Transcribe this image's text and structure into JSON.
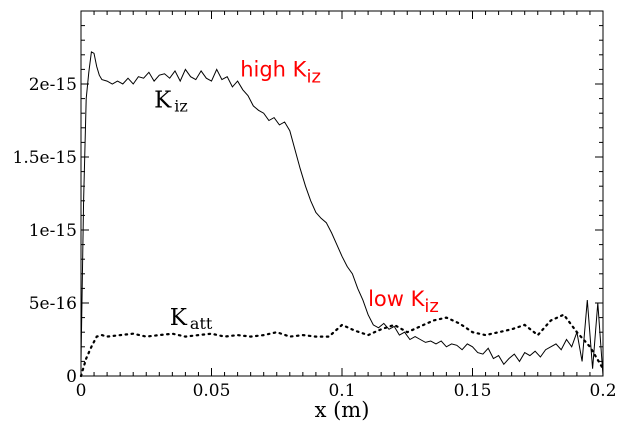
{
  "chart_data": {
    "type": "line",
    "title": "",
    "xlabel": "x (m)",
    "ylabel": "",
    "xlim": [
      0,
      0.2
    ],
    "ylim": [
      0,
      2.5e-15
    ],
    "x_ticks": [
      0,
      0.05,
      0.1,
      0.15,
      0.2
    ],
    "x_tick_labels": [
      "0",
      "0.05",
      "0.1",
      "0.15",
      "0.2"
    ],
    "y_ticks": [
      0,
      5e-16,
      1e-15,
      1.5e-15,
      2e-15
    ],
    "y_tick_labels": [
      "0",
      "5e-16",
      "1e-15",
      "1.5e-15",
      "2e-15"
    ],
    "grid": false,
    "series": [
      {
        "name": "K iz",
        "label_main": "K",
        "label_sub": "iz",
        "style": "solid",
        "color": "#000000",
        "x": [
          0.0,
          0.001,
          0.002,
          0.003,
          0.004,
          0.005,
          0.006,
          0.007,
          0.008,
          0.01,
          0.012,
          0.014,
          0.016,
          0.018,
          0.02,
          0.022,
          0.024,
          0.026,
          0.028,
          0.03,
          0.032,
          0.034,
          0.036,
          0.038,
          0.04,
          0.042,
          0.044,
          0.046,
          0.048,
          0.05,
          0.052,
          0.054,
          0.056,
          0.058,
          0.06,
          0.062,
          0.064,
          0.066,
          0.068,
          0.07,
          0.072,
          0.074,
          0.076,
          0.078,
          0.08,
          0.082,
          0.084,
          0.086,
          0.088,
          0.09,
          0.092,
          0.094,
          0.096,
          0.098,
          0.1,
          0.102,
          0.104,
          0.106,
          0.108,
          0.11,
          0.112,
          0.114,
          0.116,
          0.118,
          0.12,
          0.122,
          0.124,
          0.126,
          0.128,
          0.13,
          0.132,
          0.134,
          0.136,
          0.138,
          0.14,
          0.142,
          0.144,
          0.146,
          0.148,
          0.15,
          0.152,
          0.154,
          0.156,
          0.158,
          0.16,
          0.162,
          0.164,
          0.166,
          0.168,
          0.17,
          0.172,
          0.174,
          0.176,
          0.178,
          0.18,
          0.182,
          0.184,
          0.186,
          0.188,
          0.19,
          0.192,
          0.194,
          0.196,
          0.198,
          0.2
        ],
        "y": [
          1e-16,
          1.2e-15,
          1.9e-15,
          2.08e-15,
          2.22e-15,
          2.21e-15,
          2.12e-15,
          2.06e-15,
          2.03e-15,
          2.02e-15,
          2e-15,
          2.02e-15,
          2e-15,
          2.04e-15,
          2e-15,
          2.05e-15,
          2.04e-15,
          2.08e-15,
          2.02e-15,
          2.06e-15,
          2.07e-15,
          2.04e-15,
          2.09e-15,
          2.02e-15,
          2.1e-15,
          2.05e-15,
          2.03e-15,
          2.09e-15,
          2.04e-15,
          2.02e-15,
          2.1e-15,
          2.03e-15,
          2.05e-15,
          1.98e-15,
          2.02e-15,
          1.96e-15,
          1.92e-15,
          1.85e-15,
          1.82e-15,
          1.8e-15,
          1.75e-15,
          1.77e-15,
          1.72e-15,
          1.74e-15,
          1.68e-15,
          1.55e-15,
          1.42e-15,
          1.3e-15,
          1.2e-15,
          1.12e-15,
          1.08e-15,
          1.05e-15,
          9.8e-16,
          9e-16,
          8.2e-16,
          7.5e-16,
          7e-16,
          6e-16,
          5.2e-16,
          4.2e-16,
          3.5e-16,
          3.3e-16,
          3.6e-16,
          3.2e-16,
          3.4e-16,
          2.8e-16,
          3e-16,
          2.5e-16,
          2.7e-16,
          2.5e-16,
          2.3e-16,
          2.4e-16,
          2.2e-16,
          2.4e-16,
          2e-16,
          2.2e-16,
          2.1e-16,
          1.8e-16,
          2.2e-16,
          2e-16,
          1.6e-16,
          1.5e-16,
          1.9e-16,
          1.2e-16,
          1.4e-16,
          8e-17,
          1.2e-16,
          1.5e-16,
          1e-16,
          1.6e-16,
          1.4e-16,
          1.7e-16,
          1.3e-16,
          1.8e-16,
          2e-16,
          2.2e-16,
          1.8e-16,
          2.5e-16,
          2e-16,
          3e-16,
          1e-16,
          5.2e-16,
          5e-17,
          5e-16,
          0.0
        ]
      },
      {
        "name": "K att",
        "label_main": "K",
        "label_sub": "att",
        "style": "dotted",
        "color": "#000000",
        "x": [
          0.0,
          0.002,
          0.004,
          0.006,
          0.008,
          0.01,
          0.015,
          0.02,
          0.025,
          0.03,
          0.035,
          0.04,
          0.045,
          0.05,
          0.055,
          0.06,
          0.065,
          0.07,
          0.075,
          0.08,
          0.085,
          0.09,
          0.095,
          0.1,
          0.105,
          0.11,
          0.115,
          0.12,
          0.125,
          0.13,
          0.135,
          0.14,
          0.145,
          0.15,
          0.155,
          0.16,
          0.165,
          0.17,
          0.175,
          0.18,
          0.185,
          0.19,
          0.195,
          0.2
        ],
        "y": [
          0.0,
          1.2e-16,
          2e-16,
          2.7e-16,
          2.8e-16,
          2.7e-16,
          2.8e-16,
          2.9e-16,
          2.7e-16,
          2.8e-16,
          2.9e-16,
          2.7e-16,
          2.8e-16,
          2.9e-16,
          2.7e-16,
          2.8e-16,
          2.7e-16,
          2.8e-16,
          3e-16,
          2.7e-16,
          2.8e-16,
          2.7e-16,
          2.7e-16,
          3.5e-16,
          3.1e-16,
          2.8e-16,
          3.2e-16,
          3.5e-16,
          3e-16,
          3.4e-16,
          3.8e-16,
          4e-16,
          3.6e-16,
          3e-16,
          2.8e-16,
          3e-16,
          3.2e-16,
          3.5e-16,
          2.8e-16,
          3.8e-16,
          4.2e-16,
          3e-16,
          2e-16,
          5e-17
        ]
      }
    ],
    "annotations": [
      {
        "id": "high",
        "main": "high K",
        "sub": "iz",
        "color": "#ff0000",
        "x": 0.061,
        "y": 2.05e-15
      },
      {
        "id": "low",
        "main": "low K",
        "sub": "iz",
        "color": "#ff0000",
        "x": 0.11,
        "y": 4.8e-16
      }
    ],
    "curve_labels": [
      {
        "series": "K iz",
        "x": 0.028,
        "y": 1.84e-15
      },
      {
        "series": "K att",
        "x": 0.034,
        "y": 3.5e-16
      }
    ]
  }
}
